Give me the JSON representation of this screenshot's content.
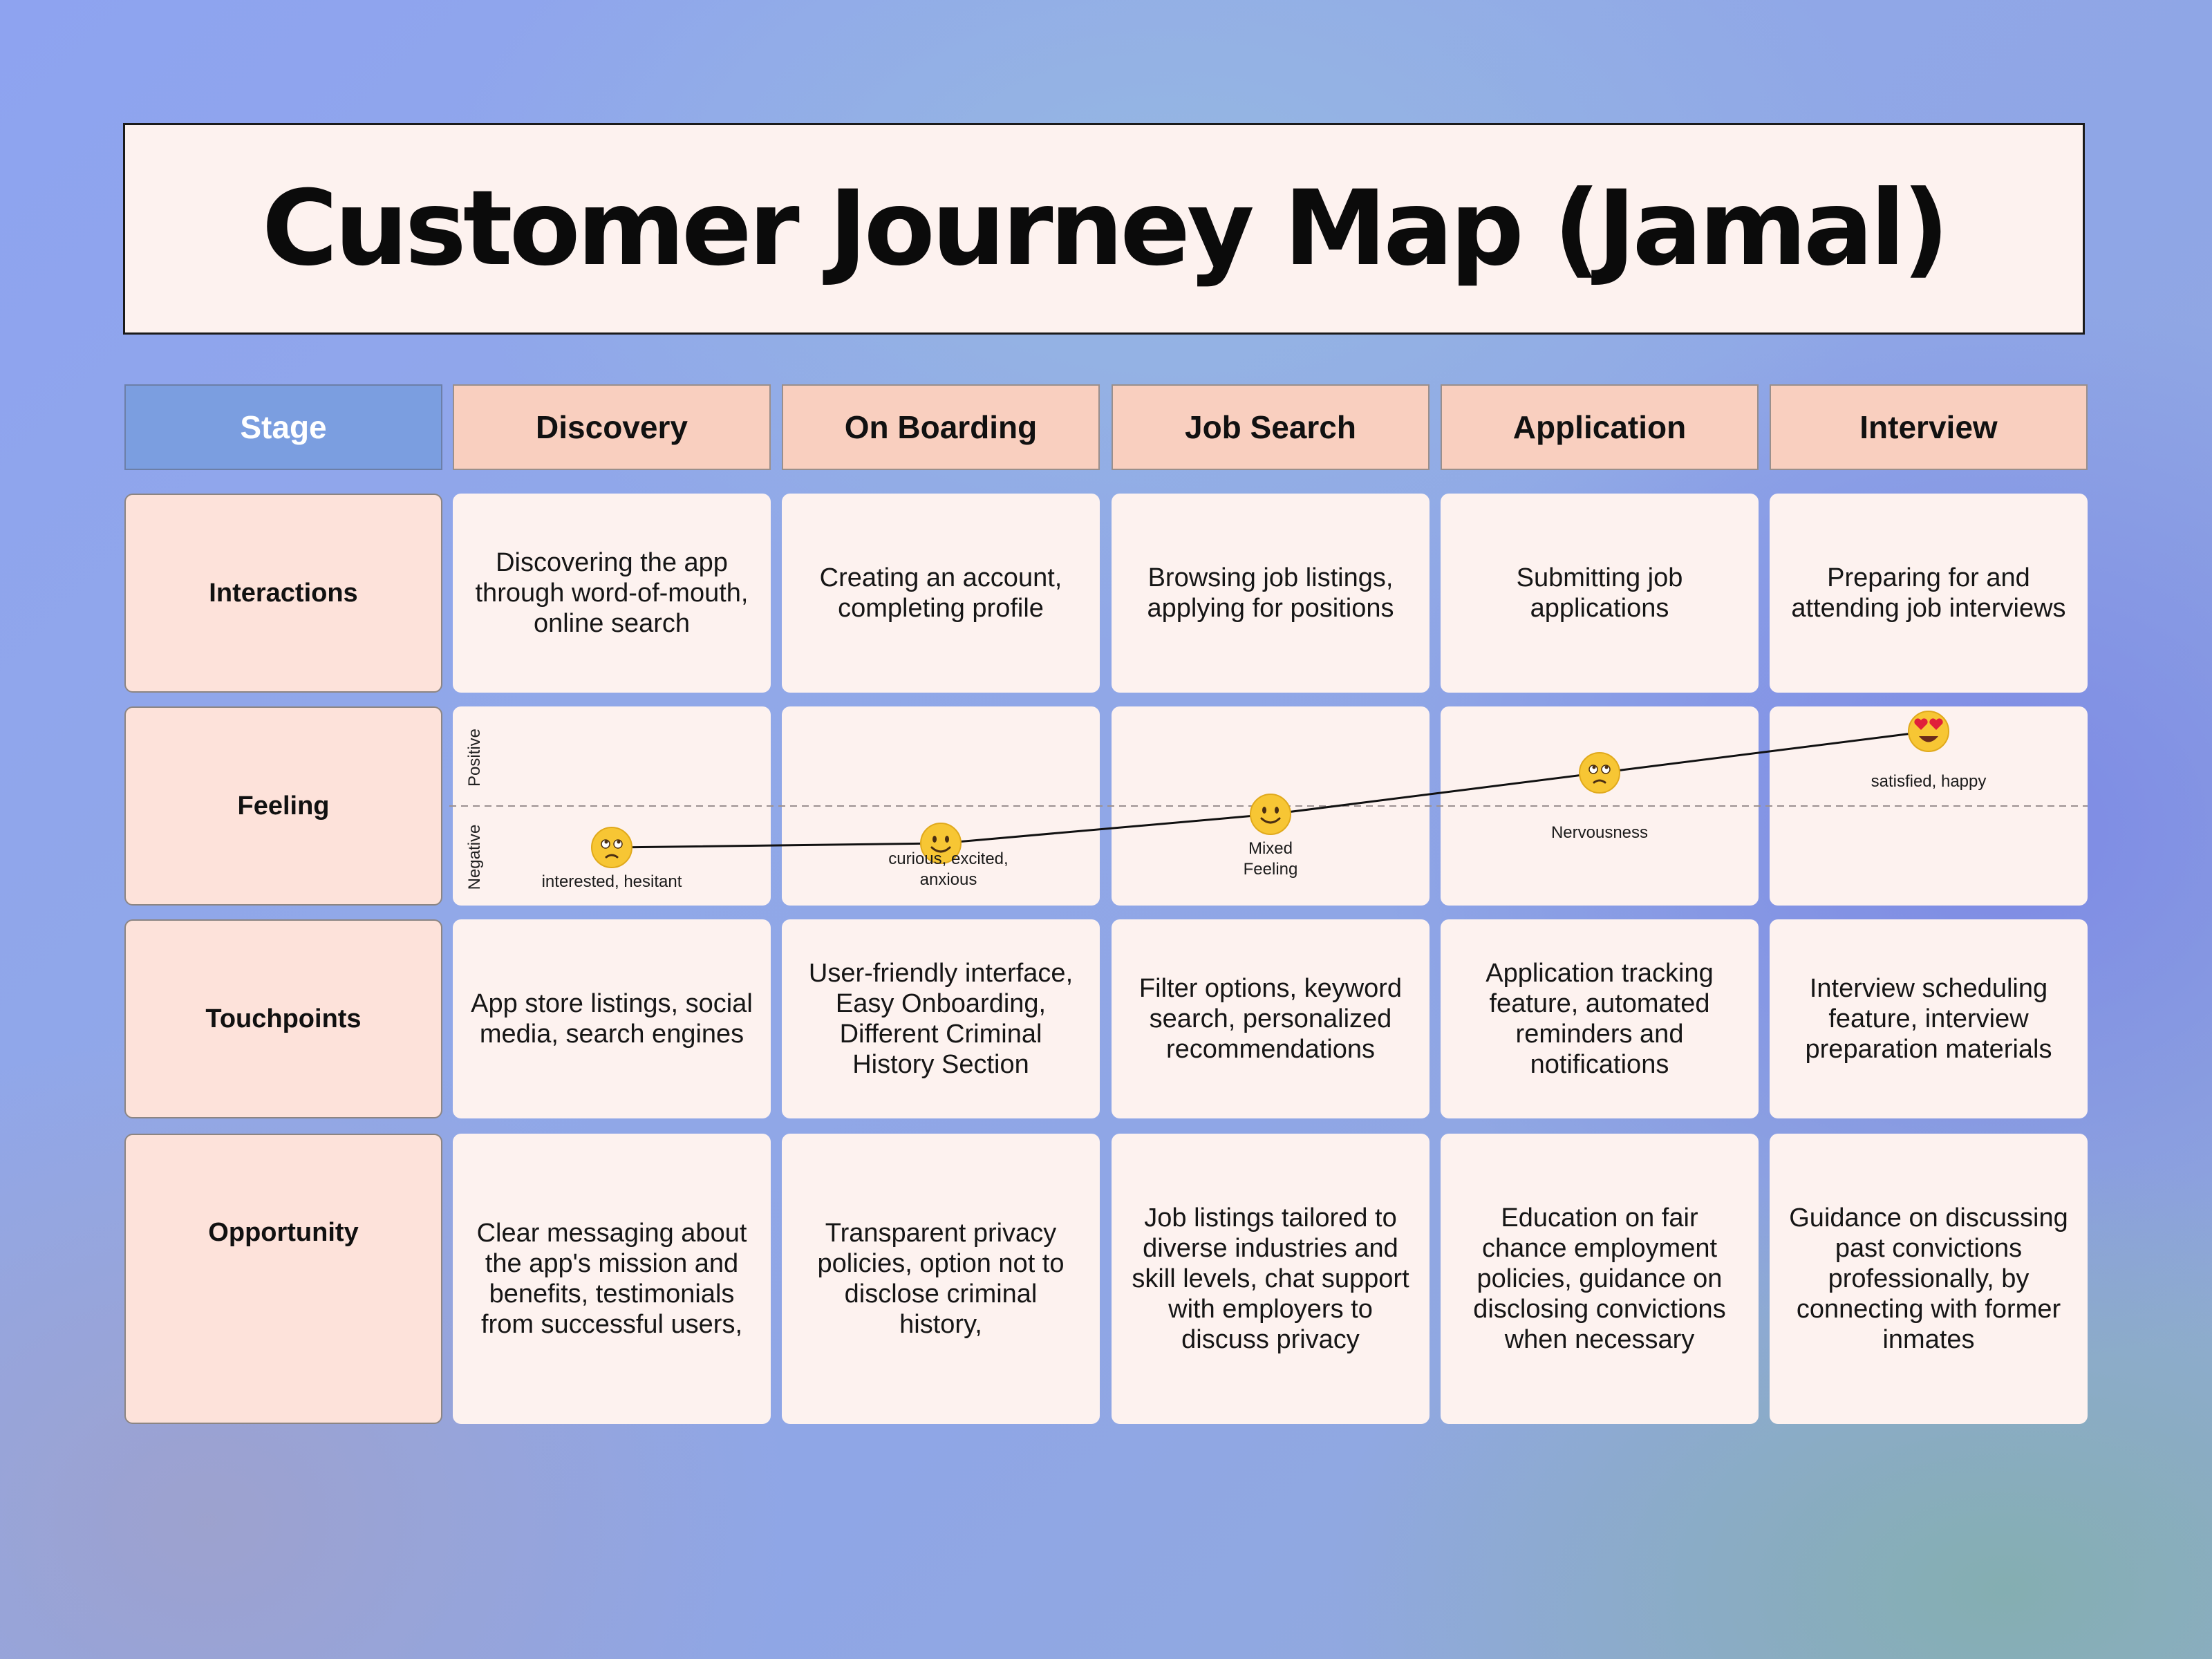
{
  "title": "Customer Journey Map (Jamal)",
  "header": {
    "stage_label": "Stage",
    "stages": [
      "Discovery",
      "On Boarding",
      "Job Search",
      "Application",
      "Interview"
    ]
  },
  "rows": {
    "interactions": {
      "label": "Interactions",
      "cells": [
        "Discovering the app through word-of-mouth, online search",
        "Creating an account, completing profile",
        "Browsing job listings, applying for positions",
        "Submitting job applications",
        "Preparing for and attending job interviews"
      ]
    },
    "feeling": {
      "label": "Feeling",
      "axis_positive": "Positive",
      "axis_negative": "Negative",
      "points": [
        {
          "stage": "Discovery",
          "level": -0.5,
          "emoji": "hesitant-face",
          "text": [
            "interested, hesitant"
          ]
        },
        {
          "stage": "On Boarding",
          "level": -0.45,
          "emoji": "smiling-face",
          "text": [
            "curious, excited,",
            "anxious"
          ]
        },
        {
          "stage": "Job Search",
          "level": -0.1,
          "emoji": "smiling-face",
          "text": [
            "Mixed",
            "Feeling"
          ]
        },
        {
          "stage": "Application",
          "level": 0.4,
          "emoji": "nervous-face",
          "text": [
            "Nervousness"
          ]
        },
        {
          "stage": "Interview",
          "level": 0.9,
          "emoji": "heart-eyes-face",
          "text": [
            "satisfied, happy"
          ]
        }
      ]
    },
    "touchpoints": {
      "label": "Touchpoints",
      "cells": [
        "App store listings, social media, search engines",
        "User-friendly interface, Easy Onboarding, Different Criminal History Section",
        "Filter options, keyword search, personalized recommendations",
        "Application tracking feature, automated reminders and notifications",
        "Interview scheduling feature, interview preparation materials"
      ]
    },
    "opportunity": {
      "label": "Opportunity",
      "cells": [
        "Clear messaging about the app's mission and benefits, testimonials from successful users,",
        "Transparent privacy policies, option not to disclose criminal history,",
        "Job listings tailored to diverse industries and skill levels, chat support with employers to discuss privacy",
        "Education on fair chance employment policies, guidance on disclosing convictions when necessary",
        "Guidance on discussing past convictions professionally, by connecting with former inmates"
      ]
    }
  },
  "colors": {
    "header_fill": "#f9cfbf",
    "stage_fill": "#7b9ee0",
    "row_label_fill": "#fde2da",
    "cell_fill": "#fdf2ef",
    "emoji_yellow": "#f7c634"
  }
}
